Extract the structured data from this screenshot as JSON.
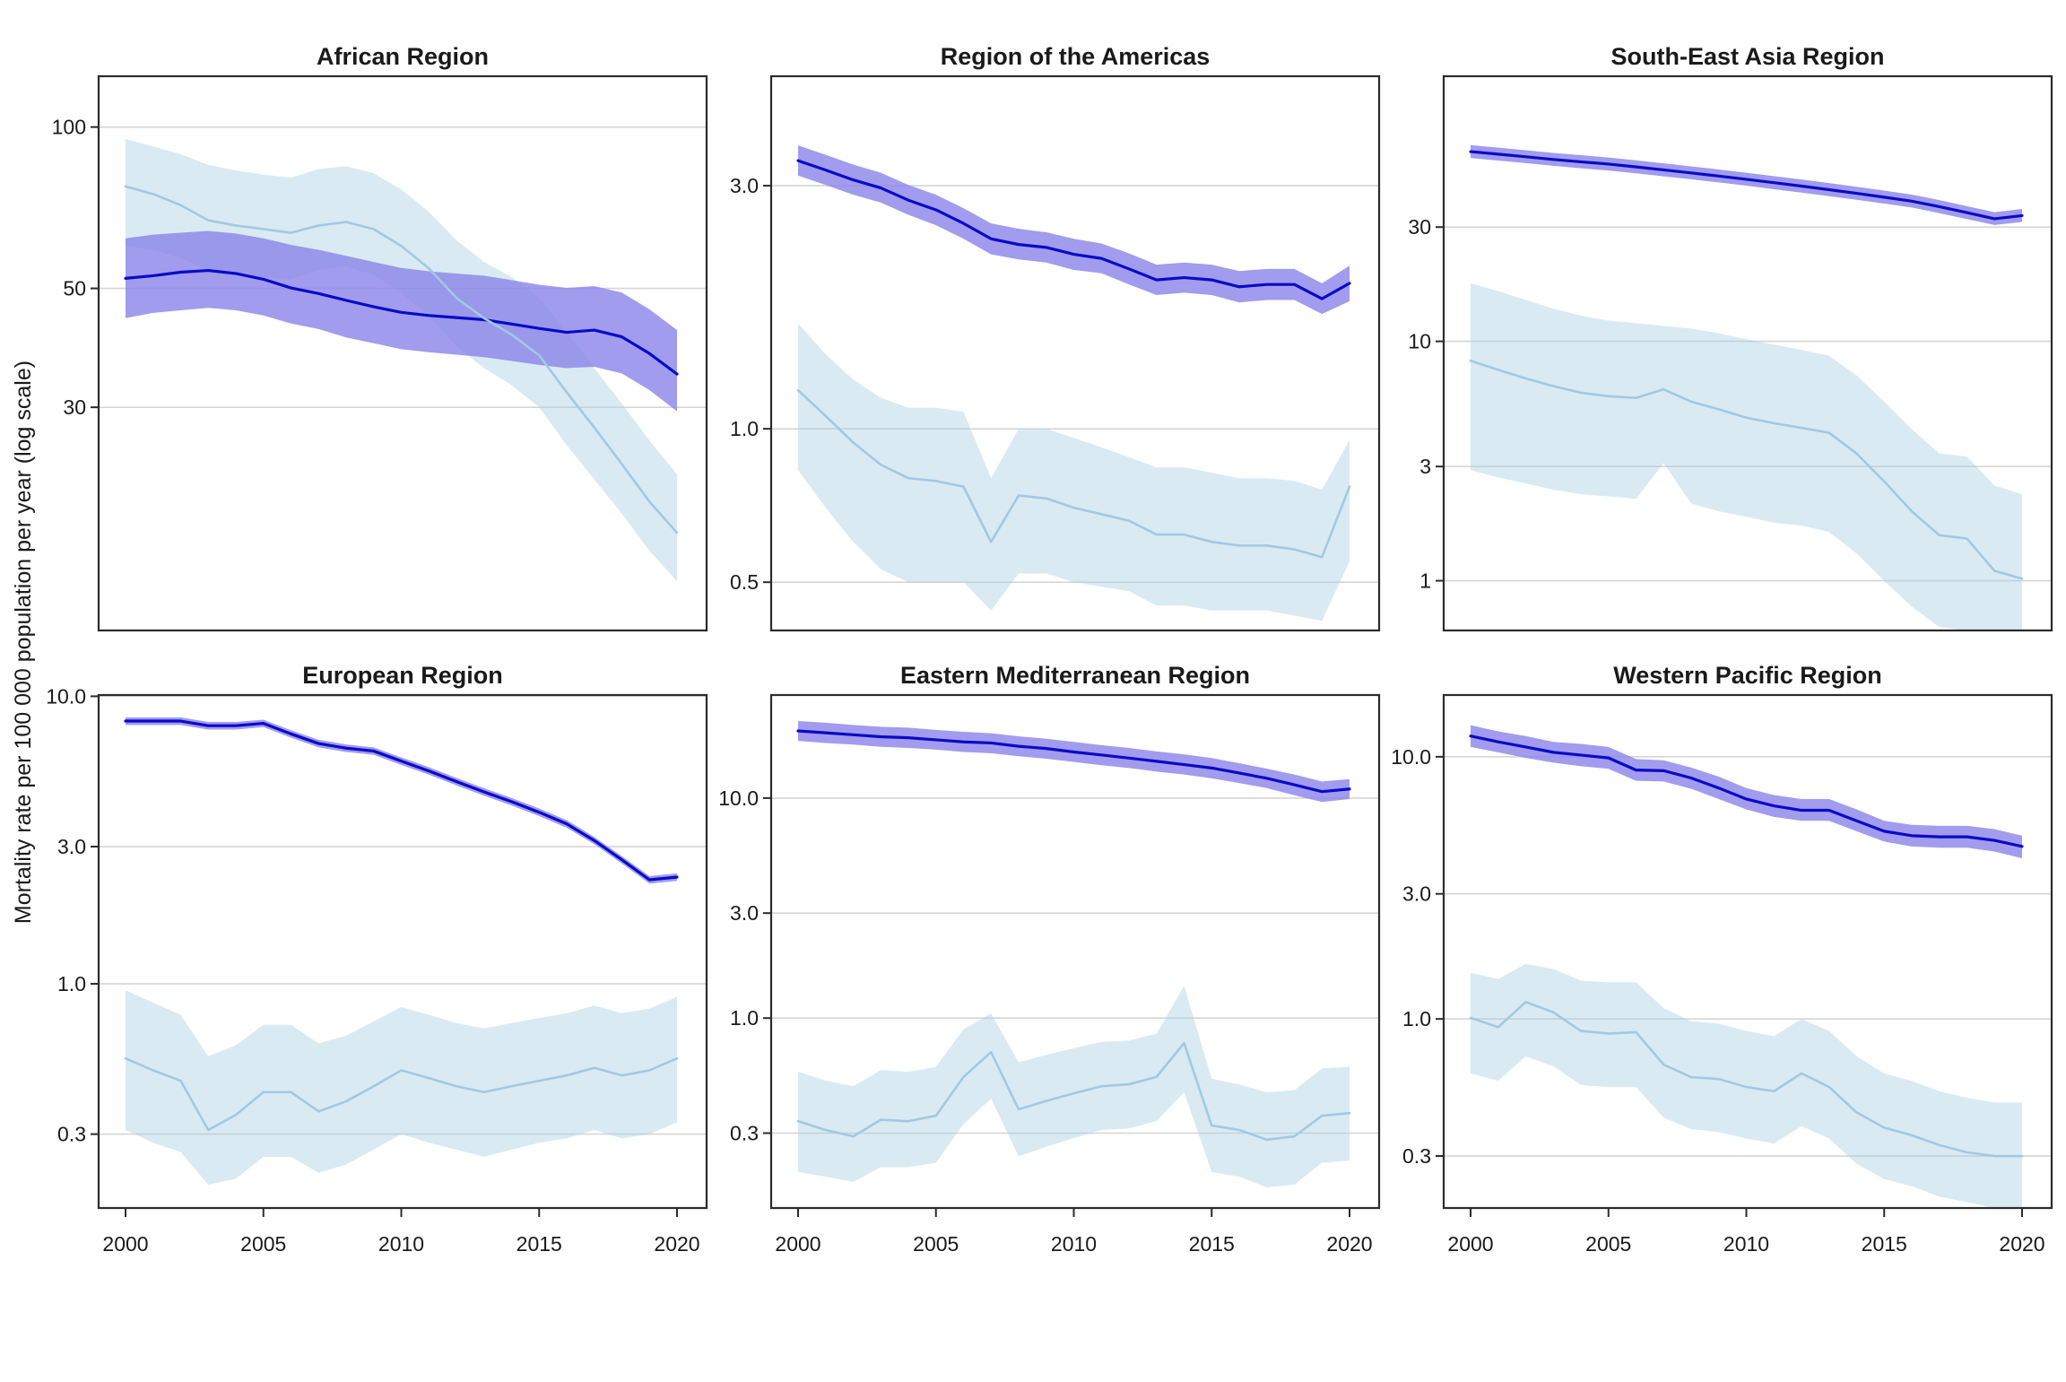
{
  "figure": {
    "ylabel": "Mortality rate per 100 000 population per year (log scale)",
    "x_tick_labels": [
      "2000",
      "2005",
      "2010",
      "2015",
      "2020"
    ],
    "x_ticks": [
      2000,
      2005,
      2010,
      2015,
      2020
    ],
    "years": [
      2000,
      2001,
      2002,
      2003,
      2004,
      2005,
      2006,
      2007,
      2008,
      2009,
      2010,
      2011,
      2012,
      2013,
      2014,
      2015,
      2016,
      2017,
      2018,
      2019,
      2020
    ],
    "colors": {
      "dark_line": "#0a0ac8",
      "dark_band": "#8983e9",
      "light_line": "#a1c9e2",
      "light_band": "#a6cee3",
      "grid": "#d6d6d6",
      "panel_border": "#2b2b2b",
      "text": "#1a1a1a"
    }
  },
  "chart_data": [
    {
      "type": "line",
      "title": "African Region",
      "x_range": [
        2000,
        2020
      ],
      "ylim": [
        11.5,
        124.4
      ],
      "yticks": [
        100,
        50,
        30
      ],
      "ytick_labels": [
        "100",
        "50",
        "30"
      ],
      "series": [
        {
          "name": "dark",
          "values": [
            52.2,
            52.8,
            53.6,
            54.0,
            53.3,
            52.0,
            50.1,
            48.9,
            47.5,
            46.2,
            45.1,
            44.5,
            44.1,
            43.7,
            42.9,
            42.1,
            41.4,
            41.8,
            40.6,
            37.8,
            34.6
          ],
          "lower": [
            44.0,
            45.0,
            45.5,
            46.0,
            45.5,
            44.5,
            43.0,
            42.0,
            40.5,
            39.5,
            38.5,
            38.0,
            37.6,
            37.2,
            36.6,
            36.0,
            35.5,
            35.7,
            34.7,
            32.3,
            29.5
          ],
          "upper": [
            62.0,
            63.0,
            63.5,
            64.0,
            63.3,
            62.0,
            60.3,
            59.0,
            57.5,
            56.0,
            54.6,
            53.8,
            53.3,
            52.8,
            51.8,
            50.8,
            50.1,
            50.5,
            49.1,
            45.7,
            41.8
          ]
        },
        {
          "name": "light",
          "values": [
            77.5,
            75.0,
            71.5,
            67.0,
            65.5,
            64.5,
            63.5,
            65.5,
            66.5,
            64.5,
            60.0,
            54.5,
            48.0,
            44.0,
            41.0,
            37.5,
            32.0,
            27.5,
            23.5,
            20.0,
            17.5
          ],
          "lower": [
            60.0,
            59.0,
            57.0,
            54.0,
            53.0,
            52.5,
            52.0,
            54.0,
            55.0,
            53.0,
            49.0,
            44.5,
            39.0,
            35.5,
            33.0,
            30.0,
            25.5,
            22.0,
            19.0,
            16.2,
            14.2
          ],
          "upper": [
            95.0,
            92.0,
            89.0,
            85.0,
            83.0,
            81.5,
            80.5,
            83.5,
            84.5,
            82.0,
            76.5,
            69.5,
            61.5,
            56.0,
            52.5,
            48.0,
            41.5,
            35.5,
            30.5,
            26.0,
            22.5
          ]
        }
      ]
    },
    {
      "type": "line",
      "title": "Region of the Americas",
      "x_range": [
        2000,
        2020
      ],
      "ylim": [
        0.402,
        4.92
      ],
      "yticks": [
        3.0,
        1.0,
        0.5
      ],
      "ytick_labels": [
        "3.0",
        "1.0",
        "0.5"
      ],
      "series": [
        {
          "name": "dark",
          "values": [
            3.36,
            3.22,
            3.08,
            2.97,
            2.81,
            2.69,
            2.53,
            2.36,
            2.3,
            2.27,
            2.2,
            2.16,
            2.06,
            1.96,
            1.98,
            1.96,
            1.9,
            1.92,
            1.92,
            1.8,
            1.93
          ],
          "lower": [
            3.14,
            3.01,
            2.88,
            2.78,
            2.63,
            2.51,
            2.36,
            2.2,
            2.15,
            2.12,
            2.05,
            2.02,
            1.92,
            1.83,
            1.85,
            1.83,
            1.77,
            1.79,
            1.79,
            1.68,
            1.78
          ],
          "upper": [
            3.6,
            3.45,
            3.3,
            3.18,
            3.01,
            2.88,
            2.71,
            2.53,
            2.47,
            2.43,
            2.36,
            2.31,
            2.21,
            2.1,
            2.12,
            2.1,
            2.04,
            2.06,
            2.06,
            1.93,
            2.09
          ]
        },
        {
          "name": "light",
          "values": [
            1.19,
            1.06,
            0.94,
            0.85,
            0.8,
            0.79,
            0.77,
            0.6,
            0.74,
            0.73,
            0.7,
            0.68,
            0.66,
            0.62,
            0.62,
            0.6,
            0.59,
            0.59,
            0.58,
            0.56,
            0.77
          ],
          "lower": [
            0.83,
            0.7,
            0.6,
            0.53,
            0.5,
            0.5,
            0.5,
            0.44,
            0.52,
            0.52,
            0.5,
            0.49,
            0.48,
            0.45,
            0.45,
            0.44,
            0.44,
            0.44,
            0.43,
            0.42,
            0.55
          ],
          "upper": [
            1.61,
            1.4,
            1.25,
            1.15,
            1.1,
            1.1,
            1.08,
            0.8,
            1.0,
            1.0,
            0.96,
            0.92,
            0.88,
            0.84,
            0.84,
            0.82,
            0.8,
            0.8,
            0.79,
            0.76,
            0.95
          ]
        }
      ]
    },
    {
      "type": "line",
      "title": "South-East Asia Region",
      "x_range": [
        2000,
        2020
      ],
      "ylim": [
        0.62,
        128
      ],
      "yticks": [
        30,
        10,
        3,
        1
      ],
      "ytick_labels": [
        "30",
        "10",
        "3",
        "1"
      ],
      "series": [
        {
          "name": "dark",
          "values": [
            62.0,
            60.5,
            59.0,
            57.5,
            56.2,
            55.0,
            53.5,
            52.0,
            50.5,
            49.0,
            47.5,
            46.0,
            44.5,
            43.0,
            41.5,
            40.0,
            38.5,
            36.5,
            34.5,
            32.5,
            33.5
          ],
          "lower": [
            58.3,
            56.9,
            55.5,
            54.1,
            52.8,
            51.7,
            50.3,
            48.9,
            47.5,
            46.1,
            44.7,
            43.2,
            41.8,
            40.4,
            39.0,
            37.6,
            36.2,
            34.3,
            32.4,
            30.6,
            31.5
          ],
          "upper": [
            66.0,
            64.4,
            62.8,
            61.2,
            59.9,
            58.6,
            57.0,
            55.4,
            53.8,
            52.2,
            50.6,
            49.0,
            47.4,
            45.8,
            44.2,
            42.6,
            41.0,
            38.9,
            36.7,
            34.6,
            35.7
          ]
        },
        {
          "name": "light",
          "values": [
            8.3,
            7.6,
            7.0,
            6.5,
            6.1,
            5.9,
            5.8,
            6.3,
            5.6,
            5.2,
            4.8,
            4.55,
            4.35,
            4.15,
            3.4,
            2.6,
            1.95,
            1.55,
            1.5,
            1.1,
            1.02
          ],
          "lower": [
            2.9,
            2.7,
            2.55,
            2.4,
            2.3,
            2.25,
            2.2,
            3.1,
            2.1,
            1.95,
            1.85,
            1.75,
            1.7,
            1.6,
            1.3,
            1.0,
            0.78,
            0.64,
            0.62,
            0.46,
            0.42
          ],
          "upper": [
            17.5,
            16.2,
            14.9,
            13.7,
            12.8,
            12.2,
            11.9,
            11.6,
            11.3,
            10.8,
            10.2,
            9.7,
            9.2,
            8.7,
            7.2,
            5.6,
            4.3,
            3.4,
            3.3,
            2.5,
            2.3
          ]
        }
      ]
    },
    {
      "type": "line",
      "title": "European Region",
      "x_range": [
        2000,
        2020
      ],
      "ylim": [
        0.166,
        10.1
      ],
      "yticks": [
        10.0,
        3.0,
        1.0,
        0.3
      ],
      "ytick_labels": [
        "10.0",
        "3.0",
        "1.0",
        "0.3"
      ],
      "series": [
        {
          "name": "dark",
          "values": [
            8.2,
            8.2,
            8.2,
            7.9,
            7.9,
            8.05,
            7.4,
            6.85,
            6.6,
            6.45,
            5.95,
            5.5,
            5.05,
            4.65,
            4.3,
            3.95,
            3.6,
            3.15,
            2.7,
            2.3,
            2.35
          ],
          "lower": [
            7.95,
            7.95,
            7.95,
            7.66,
            7.66,
            7.81,
            7.18,
            6.64,
            6.4,
            6.26,
            5.77,
            5.34,
            4.9,
            4.51,
            4.17,
            3.83,
            3.49,
            3.06,
            2.62,
            2.23,
            2.28
          ],
          "upper": [
            8.45,
            8.45,
            8.45,
            8.14,
            8.14,
            8.29,
            7.62,
            7.06,
            6.8,
            6.64,
            6.13,
            5.67,
            5.2,
            4.79,
            4.43,
            4.07,
            3.71,
            3.24,
            2.78,
            2.37,
            2.42
          ]
        },
        {
          "name": "light",
          "values": [
            0.55,
            0.5,
            0.46,
            0.31,
            0.35,
            0.42,
            0.42,
            0.36,
            0.39,
            0.44,
            0.5,
            0.47,
            0.44,
            0.42,
            0.44,
            0.46,
            0.48,
            0.51,
            0.48,
            0.5,
            0.55
          ],
          "lower": [
            0.31,
            0.28,
            0.26,
            0.2,
            0.21,
            0.25,
            0.25,
            0.22,
            0.235,
            0.265,
            0.3,
            0.28,
            0.265,
            0.25,
            0.265,
            0.28,
            0.29,
            0.31,
            0.29,
            0.3,
            0.33
          ],
          "upper": [
            0.95,
            0.86,
            0.78,
            0.56,
            0.61,
            0.72,
            0.72,
            0.62,
            0.66,
            0.74,
            0.83,
            0.78,
            0.73,
            0.7,
            0.73,
            0.76,
            0.79,
            0.84,
            0.79,
            0.82,
            0.9
          ]
        }
      ]
    },
    {
      "type": "line",
      "title": "Eastern Mediterranean Region",
      "x_range": [
        2000,
        2020
      ],
      "ylim": [
        0.137,
        29.4
      ],
      "yticks": [
        10.0,
        3.0,
        1.0,
        0.3
      ],
      "ytick_labels": [
        "10.0",
        "3.0",
        "1.0",
        "0.3"
      ],
      "series": [
        {
          "name": "dark",
          "values": [
            20.2,
            19.8,
            19.4,
            19.0,
            18.8,
            18.4,
            18.0,
            17.8,
            17.2,
            16.8,
            16.2,
            15.7,
            15.2,
            14.7,
            14.2,
            13.7,
            13.0,
            12.3,
            11.5,
            10.7,
            11.0
          ],
          "lower": [
            18.2,
            17.8,
            17.5,
            17.1,
            16.9,
            16.6,
            16.2,
            16.0,
            15.5,
            15.1,
            14.6,
            14.1,
            13.7,
            13.2,
            12.8,
            12.3,
            11.7,
            11.1,
            10.3,
            9.6,
            9.9
          ],
          "upper": [
            22.4,
            22.0,
            21.5,
            21.1,
            20.9,
            20.4,
            20.0,
            19.7,
            19.1,
            18.6,
            18.0,
            17.4,
            16.9,
            16.3,
            15.8,
            15.2,
            14.4,
            13.6,
            12.8,
            11.9,
            12.2
          ]
        },
        {
          "name": "light",
          "values": [
            0.34,
            0.31,
            0.29,
            0.345,
            0.34,
            0.36,
            0.54,
            0.7,
            0.385,
            0.42,
            0.455,
            0.49,
            0.5,
            0.54,
            0.77,
            0.325,
            0.31,
            0.28,
            0.29,
            0.36,
            0.37
          ],
          "lower": [
            0.2,
            0.19,
            0.18,
            0.21,
            0.21,
            0.22,
            0.33,
            0.43,
            0.235,
            0.26,
            0.285,
            0.31,
            0.315,
            0.34,
            0.46,
            0.2,
            0.19,
            0.17,
            0.175,
            0.22,
            0.225
          ],
          "upper": [
            0.57,
            0.52,
            0.49,
            0.58,
            0.57,
            0.6,
            0.89,
            1.05,
            0.63,
            0.68,
            0.73,
            0.78,
            0.79,
            0.85,
            1.4,
            0.53,
            0.5,
            0.46,
            0.47,
            0.59,
            0.6
          ]
        }
      ]
    },
    {
      "type": "line",
      "title": "Western Pacific Region",
      "x_range": [
        2000,
        2020
      ],
      "ylim": [
        0.19,
        17.2
      ],
      "yticks": [
        10.0,
        3.0,
        1.0,
        0.3
      ],
      "ytick_labels": [
        "10.0",
        "3.0",
        "1.0",
        "0.3"
      ],
      "series": [
        {
          "name": "dark",
          "values": [
            12.0,
            11.4,
            10.9,
            10.4,
            10.15,
            9.9,
            8.9,
            8.85,
            8.3,
            7.6,
            6.9,
            6.5,
            6.25,
            6.25,
            5.7,
            5.2,
            5.0,
            4.95,
            4.95,
            4.8,
            4.55
          ],
          "lower": [
            10.9,
            10.4,
            9.9,
            9.5,
            9.2,
            9.0,
            8.1,
            8.05,
            7.55,
            6.9,
            6.3,
            5.9,
            5.7,
            5.7,
            5.2,
            4.75,
            4.55,
            4.5,
            4.5,
            4.35,
            4.1
          ],
          "upper": [
            13.2,
            12.5,
            12.0,
            11.4,
            11.2,
            10.9,
            9.8,
            9.7,
            9.1,
            8.4,
            7.6,
            7.15,
            6.9,
            6.9,
            6.3,
            5.7,
            5.5,
            5.45,
            5.45,
            5.3,
            5.0
          ]
        },
        {
          "name": "light",
          "values": [
            1.01,
            0.93,
            1.16,
            1.06,
            0.9,
            0.88,
            0.89,
            0.67,
            0.6,
            0.59,
            0.55,
            0.53,
            0.62,
            0.55,
            0.44,
            0.385,
            0.36,
            0.33,
            0.31,
            0.3,
            0.3
          ],
          "lower": [
            0.62,
            0.58,
            0.72,
            0.66,
            0.56,
            0.55,
            0.55,
            0.42,
            0.38,
            0.37,
            0.35,
            0.335,
            0.39,
            0.35,
            0.28,
            0.245,
            0.23,
            0.21,
            0.2,
            0.19,
            0.19
          ],
          "upper": [
            1.5,
            1.42,
            1.62,
            1.55,
            1.4,
            1.38,
            1.38,
            1.1,
            0.98,
            0.96,
            0.9,
            0.86,
            1.0,
            0.9,
            0.72,
            0.62,
            0.58,
            0.53,
            0.5,
            0.48,
            0.48
          ]
        }
      ]
    }
  ]
}
